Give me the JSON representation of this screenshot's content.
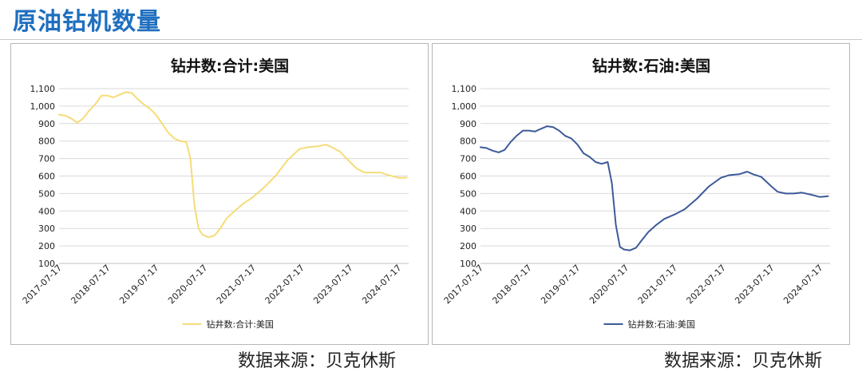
{
  "page": {
    "title": "原油钻机数量"
  },
  "charts": [
    {
      "source_label": "数据来源：贝克休斯"
    },
    {
      "source_label": "数据来源：贝克休斯"
    }
  ],
  "chart_data": [
    {
      "type": "line",
      "title": "钻井数:合计:美国",
      "xlabel": "",
      "ylabel": "",
      "ylim": [
        100,
        1100
      ],
      "yticks": [
        "1,100",
        "1,000",
        "900",
        "800",
        "700",
        "600",
        "500",
        "400",
        "300",
        "200",
        "100"
      ],
      "xticks": [
        "2017-07-17",
        "2018-07-17",
        "2019-07-17",
        "2020-07-17",
        "2021-07-17",
        "2022-07-17",
        "2023-07-17",
        "2024-07-17"
      ],
      "xlim": [
        "2017-07-17",
        "2024-09-30"
      ],
      "grid": true,
      "legend": "bottom",
      "color": "#f5dc77",
      "series": [
        {
          "name": "钻井数:合计:美国",
          "x": [
            "2017-07-17",
            "2017-09-01",
            "2017-10-15",
            "2017-12-01",
            "2018-01-15",
            "2018-03-01",
            "2018-04-15",
            "2018-06-01",
            "2018-07-17",
            "2018-09-01",
            "2018-10-15",
            "2018-12-01",
            "2019-01-15",
            "2019-03-01",
            "2019-04-15",
            "2019-06-01",
            "2019-07-17",
            "2019-09-01",
            "2019-10-15",
            "2019-12-01",
            "2020-01-15",
            "2020-03-01",
            "2020-04-01",
            "2020-05-01",
            "2020-06-01",
            "2020-07-01",
            "2020-08-15",
            "2020-10-01",
            "2020-11-15",
            "2021-01-01",
            "2021-03-01",
            "2021-05-01",
            "2021-07-17",
            "2021-10-01",
            "2022-01-01",
            "2022-04-01",
            "2022-07-01",
            "2022-09-01",
            "2022-11-15",
            "2023-01-15",
            "2023-03-01",
            "2023-05-01",
            "2023-07-17",
            "2023-09-01",
            "2023-11-01",
            "2024-01-01",
            "2024-03-01",
            "2024-05-01",
            "2024-07-17",
            "2024-09-15"
          ],
          "values": [
            950,
            945,
            930,
            905,
            930,
            975,
            1010,
            1060,
            1060,
            1050,
            1065,
            1080,
            1075,
            1040,
            1010,
            985,
            950,
            900,
            850,
            815,
            800,
            795,
            700,
            430,
            300,
            265,
            250,
            260,
            305,
            360,
            400,
            440,
            480,
            530,
            600,
            690,
            755,
            765,
            770,
            780,
            765,
            740,
            680,
            645,
            620,
            620,
            620,
            605,
            590,
            590
          ]
        }
      ]
    },
    {
      "type": "line",
      "title": "钻井数:石油:美国",
      "xlabel": "",
      "ylabel": "",
      "ylim": [
        100,
        1100
      ],
      "yticks": [
        "1,100",
        "1,000",
        "900",
        "800",
        "700",
        "600",
        "500",
        "400",
        "300",
        "200",
        "100"
      ],
      "xticks": [
        "2017-07-17",
        "2018-07-17",
        "2019-07-17",
        "2020-07-17",
        "2021-07-17",
        "2022-07-17",
        "2023-07-17",
        "2024-07-17"
      ],
      "xlim": [
        "2017-07-17",
        "2024-09-30"
      ],
      "grid": true,
      "legend": "bottom",
      "color": "#3d5a99",
      "series": [
        {
          "name": "钻井数:石油:美国",
          "x": [
            "2017-07-17",
            "2017-09-01",
            "2017-10-15",
            "2017-12-01",
            "2018-01-15",
            "2018-03-01",
            "2018-04-15",
            "2018-06-01",
            "2018-07-17",
            "2018-09-01",
            "2018-10-15",
            "2018-12-01",
            "2019-01-15",
            "2019-03-01",
            "2019-04-15",
            "2019-06-01",
            "2019-07-17",
            "2019-09-01",
            "2019-10-15",
            "2019-12-01",
            "2020-01-15",
            "2020-03-01",
            "2020-04-01",
            "2020-05-01",
            "2020-06-01",
            "2020-07-01",
            "2020-08-15",
            "2020-10-01",
            "2020-11-15",
            "2021-01-01",
            "2021-03-01",
            "2021-05-01",
            "2021-07-17",
            "2021-10-01",
            "2022-01-01",
            "2022-04-01",
            "2022-07-01",
            "2022-09-01",
            "2022-11-15",
            "2023-01-15",
            "2023-03-01",
            "2023-05-01",
            "2023-07-17",
            "2023-09-01",
            "2023-11-01",
            "2024-01-01",
            "2024-03-01",
            "2024-05-01",
            "2024-07-17",
            "2024-09-15"
          ],
          "values": [
            765,
            760,
            745,
            735,
            750,
            795,
            830,
            860,
            860,
            855,
            870,
            885,
            880,
            860,
            830,
            815,
            780,
            730,
            710,
            680,
            670,
            680,
            560,
            320,
            195,
            180,
            175,
            190,
            235,
            280,
            320,
            355,
            380,
            410,
            470,
            540,
            590,
            605,
            610,
            625,
            610,
            595,
            540,
            510,
            500,
            500,
            505,
            495,
            480,
            485
          ]
        }
      ]
    }
  ]
}
